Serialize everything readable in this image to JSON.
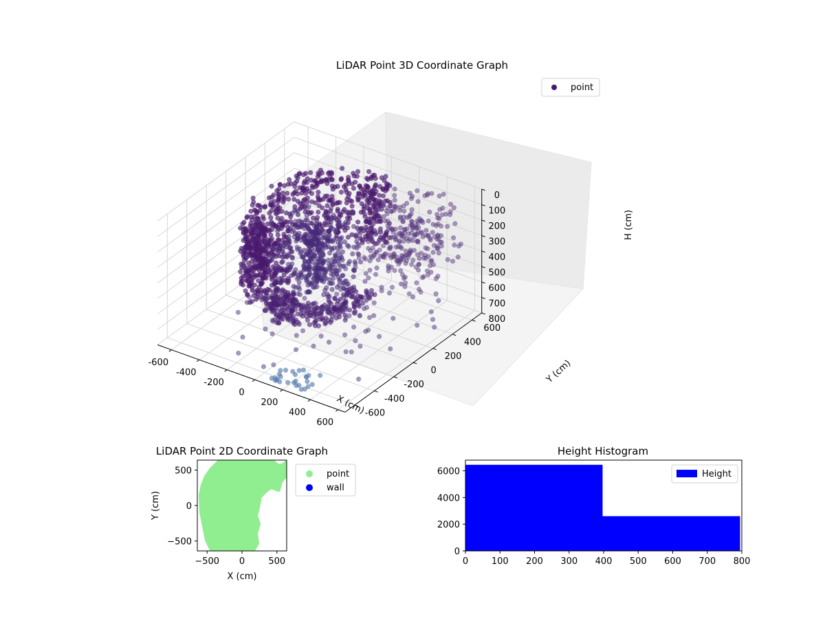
{
  "chart_data": [
    {
      "type": "scatter3d",
      "title": "LiDAR Point 3D Coordinate Graph",
      "xlabel": "X (cm)",
      "ylabel": "Y (cm)",
      "zlabel": "H (cm)",
      "xlim": [
        -700,
        650
      ],
      "ylim": [
        -700,
        700
      ],
      "zlim": [
        800,
        0
      ],
      "xticks": [
        -600,
        -400,
        -200,
        0,
        200,
        400,
        600
      ],
      "yticks": [
        -600,
        -400,
        -200,
        0,
        200,
        400,
        600
      ],
      "zticks": [
        0,
        100,
        200,
        300,
        400,
        500,
        600,
        700,
        800
      ],
      "grid": true,
      "legend": {
        "placement": "top-right",
        "entries": [
          "point"
        ]
      },
      "series": [
        {
          "name": "point",
          "color": "#46176e"
        }
      ]
    },
    {
      "type": "scatter",
      "title": "LiDAR Point 2D Coordinate Graph",
      "xlabel": "X (cm)",
      "ylabel": "Y (cm)",
      "xlim": [
        -640,
        640
      ],
      "ylim": [
        -640,
        640
      ],
      "xticks": [
        -500,
        0,
        500
      ],
      "yticks": [
        -500,
        0,
        500
      ],
      "legend": {
        "placement": "outside-right",
        "entries": [
          "point",
          "wall"
        ]
      },
      "series": [
        {
          "name": "point",
          "color": "#90ee90"
        },
        {
          "name": "wall",
          "color": "#0000ff"
        }
      ]
    },
    {
      "type": "bar",
      "title": "Height Histogram",
      "xlim": [
        0,
        800
      ],
      "ylim": [
        0,
        6800
      ],
      "xticks": [
        0,
        100,
        200,
        300,
        400,
        500,
        600,
        700,
        800
      ],
      "yticks": [
        0,
        2000,
        4000,
        6000
      ],
      "bins": [
        {
          "start": 0,
          "end": 397,
          "count": 6450
        },
        {
          "start": 397,
          "end": 795,
          "count": 2600
        }
      ],
      "legend": {
        "placement": "top-right",
        "entries": [
          "Height"
        ]
      },
      "series": [
        {
          "name": "Height",
          "color": "#0000ff"
        }
      ]
    }
  ]
}
